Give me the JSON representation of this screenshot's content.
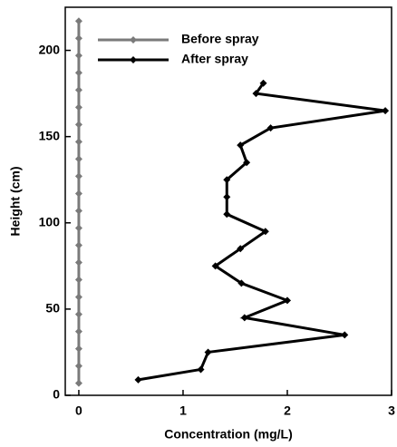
{
  "chart_data": {
    "type": "line",
    "xlabel": "Concentration (mg/L)",
    "ylabel": "Height (cm)",
    "xlim": [
      -0.13,
      3
    ],
    "ylim": [
      0,
      225
    ],
    "xticks": [
      0,
      1,
      2,
      3
    ],
    "yticks": [
      0,
      50,
      100,
      150,
      200
    ],
    "legend": "upper left",
    "series": [
      {
        "name": "Before spray",
        "color": "#7a7a7a",
        "x": [
          0,
          0,
          0,
          0,
          0,
          0,
          0,
          0,
          0,
          0,
          0,
          0,
          0,
          0,
          0,
          0,
          0,
          0,
          0,
          0,
          0,
          0
        ],
        "values": [
          7,
          17,
          27,
          37,
          47,
          57,
          67,
          77,
          87,
          97,
          107,
          117,
          127,
          137,
          147,
          157,
          167,
          177,
          187,
          197,
          207,
          217
        ]
      },
      {
        "name": "After spray",
        "color": "#000000",
        "x": [
          0.57,
          1.17,
          1.24,
          2.55,
          1.59,
          2.0,
          1.56,
          1.31,
          1.55,
          1.79,
          1.42,
          1.42,
          1.42,
          1.61,
          1.55,
          1.84,
          2.94,
          1.7,
          1.77
        ],
        "values": [
          9,
          15,
          25,
          35,
          45,
          55,
          65,
          75,
          85,
          95,
          105,
          115,
          125,
          135,
          145,
          155,
          165,
          175,
          181
        ]
      }
    ]
  }
}
